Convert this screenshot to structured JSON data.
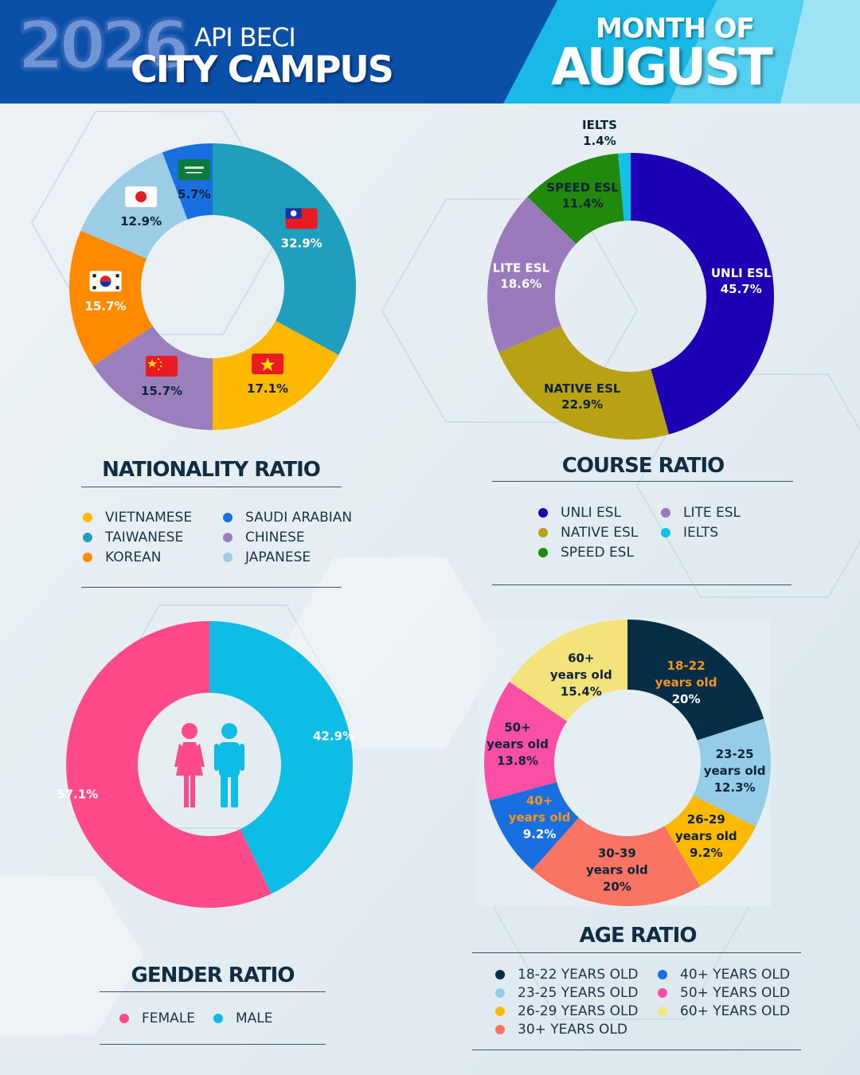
{
  "header": {
    "year": "2026",
    "org": "API BECI",
    "campus": "CITY CAMPUS",
    "month_of": "MONTH OF",
    "month": "AUGUST"
  },
  "colors": {
    "header_blue": "#0a4fa8",
    "header_light": "#19bde8",
    "title": "#102d44"
  },
  "chart_data": [
    {
      "type": "pie",
      "title": "NATIONALITY RATIO",
      "slices": [
        {
          "name": "TAIWANESE",
          "value": 32.9,
          "label": "32.9%",
          "color": "#1f9ebd",
          "flag": "taiwan-flag-icon"
        },
        {
          "name": "VIETNAMESE",
          "value": 17.1,
          "label": "17.1%",
          "color": "#fcb900",
          "flag": "vietnam-flag-icon"
        },
        {
          "name": "CHINESE",
          "value": 15.7,
          "label": "15.7%",
          "color": "#9b7fbd",
          "flag": "china-flag-icon"
        },
        {
          "name": "KOREAN",
          "value": 15.7,
          "label": "15.7%",
          "color": "#ff8a00",
          "flag": "korea-flag-icon"
        },
        {
          "name": "JAPANESE",
          "value": 12.9,
          "label": "12.9%",
          "color": "#9ccde6",
          "flag": "japan-flag-icon"
        },
        {
          "name": "SAUDI ARABIAN",
          "value": 5.7,
          "label": "5.7%",
          "color": "#1a6fe0",
          "flag": "saudi-flag-icon"
        }
      ],
      "legend": [
        {
          "name": "VIETNAMESE",
          "color": "#fcb900"
        },
        {
          "name": "SAUDI ARABIAN",
          "color": "#1a6fe0"
        },
        {
          "name": "TAIWANESE",
          "color": "#1f9ebd"
        },
        {
          "name": "CHINESE",
          "color": "#9b7fbd"
        },
        {
          "name": "KOREAN",
          "color": "#ff8a00"
        },
        {
          "name": "JAPANESE",
          "color": "#9ccde6"
        }
      ]
    },
    {
      "type": "pie",
      "title": "COURSE RATIO",
      "slices": [
        {
          "name": "UNLI ESL",
          "value": 45.7,
          "label": "UNLI ESL|45.7%",
          "color": "#1e00b4"
        },
        {
          "name": "NATIVE ESL",
          "value": 22.9,
          "label": "NATIVE ESL|22.9%",
          "color": "#b8a213"
        },
        {
          "name": "LITE ESL",
          "value": 18.6,
          "label": "LITE ESL|18.6%",
          "color": "#9a79bc"
        },
        {
          "name": "SPEED ESL",
          "value": 11.4,
          "label": "SPEED ESL|11.4%",
          "color": "#21890b"
        },
        {
          "name": "IELTS",
          "value": 1.4,
          "label": "IELTS|1.4%",
          "color": "#14c0e6"
        }
      ],
      "legend": [
        {
          "name": "UNLI ESL",
          "color": "#1e00b4"
        },
        {
          "name": "LITE ESL",
          "color": "#9a79bc"
        },
        {
          "name": "NATIVE ESL",
          "color": "#b8a213"
        },
        {
          "name": "IELTS",
          "color": "#14c0e6"
        },
        {
          "name": "SPEED ESL",
          "color": "#21890b"
        }
      ]
    },
    {
      "type": "pie",
      "title": "GENDER RATIO",
      "slices": [
        {
          "name": "MALE",
          "value": 42.9,
          "label": "42.9%",
          "color": "#0ebde6"
        },
        {
          "name": "FEMALE",
          "value": 57.1,
          "label": "57.1%",
          "color": "#ff4a8a"
        }
      ],
      "legend": [
        {
          "name": "FEMALE",
          "color": "#ff4a8a"
        },
        {
          "name": "MALE",
          "color": "#0ebde6"
        }
      ]
    },
    {
      "type": "pie",
      "title": "AGE RATIO",
      "slices": [
        {
          "name": "18-22 YEARS OLD",
          "value": 20,
          "label": "18-22|years old|20%",
          "color": "#052d45"
        },
        {
          "name": "23-25 YEARS OLD",
          "value": 12.3,
          "label": "23-25|years old|12.3%",
          "color": "#95cce8"
        },
        {
          "name": "26-29 YEARS OLD",
          "value": 9.2,
          "label": "26-29|years old|9.2%",
          "color": "#fcb900"
        },
        {
          "name": "30+ YEARS OLD",
          "value": 20,
          "label": "30-39|years old|20%",
          "color": "#f97462"
        },
        {
          "name": "40+ YEARS OLD",
          "value": 9.2,
          "label": "40+|years old|9.2%",
          "color": "#1a6fe0"
        },
        {
          "name": "50+ YEARS OLD",
          "value": 13.8,
          "label": "50+|years old|13.8%",
          "color": "#fb4ea5"
        },
        {
          "name": "60+ YEARS OLD",
          "value": 15.4,
          "label": "60+|years old|15.4%",
          "color": "#f4e27a"
        }
      ],
      "legend": [
        {
          "name": "18-22 YEARS OLD",
          "color": "#052d45"
        },
        {
          "name": "40+ YEARS OLD",
          "color": "#1a6fe0"
        },
        {
          "name": "23-25 YEARS OLD",
          "color": "#95cce8"
        },
        {
          "name": "50+ YEARS OLD",
          "color": "#fb4ea5"
        },
        {
          "name": "26-29 YEARS OLD",
          "color": "#fcb900"
        },
        {
          "name": "60+ YEARS OLD",
          "color": "#f4e27a"
        },
        {
          "name": "30+ YEARS OLD",
          "color": "#f97462"
        }
      ]
    }
  ]
}
